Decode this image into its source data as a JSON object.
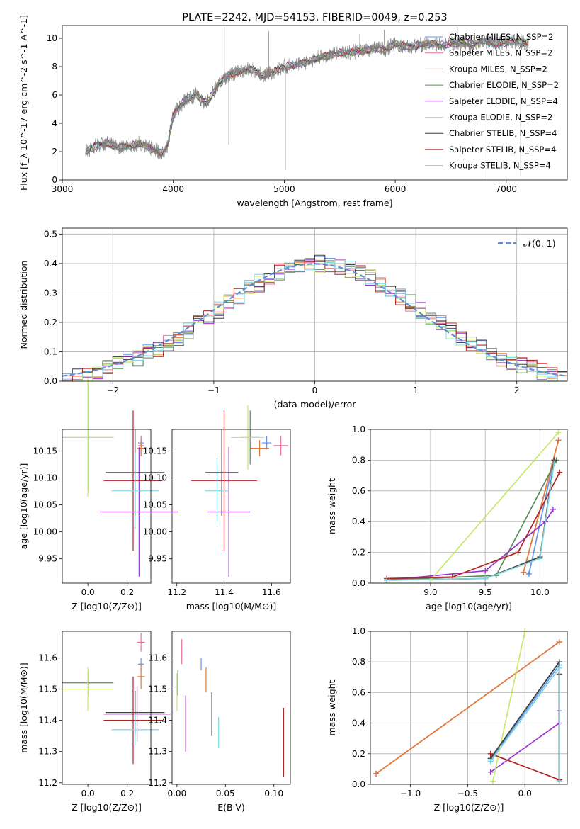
{
  "chart_data": [
    {
      "id": "spectrum",
      "type": "line",
      "title": "PLATE=2242, MJD=54153, FIBERID=0049, z=0.253",
      "xlabel": "wavelength [Angstrom, rest frame]",
      "ylabel": "Flux [f_λ 10^-17 erg cm^-2 s^-1 A^-1]",
      "xlim": [
        3000,
        7550
      ],
      "ylim": [
        0,
        10.9
      ],
      "xticks": [
        3000,
        4000,
        5000,
        6000,
        7000
      ],
      "yticks": [
        0,
        2,
        4,
        6,
        8,
        10
      ],
      "legend_position": "top-right",
      "data_line_color": "#808080",
      "series": [
        {
          "name": "Chabrier MILES, N_SSP=2",
          "color": "#6495ed"
        },
        {
          "name": "Salpeter MILES, N_SSP=2",
          "color": "#e9739b"
        },
        {
          "name": "Kroupa MILES, N_SSP=2",
          "color": "#e07b39"
        },
        {
          "name": "Chabrier ELODIE, N_SSP=2",
          "color": "#5a8a5a"
        },
        {
          "name": "Salpeter ELODIE, N_SSP=4",
          "color": "#9932cc"
        },
        {
          "name": "Kroupa ELODIE, N_SSP=2",
          "color": "#c5e86c"
        },
        {
          "name": "Chabrier STELIB, N_SSP=4",
          "color": "#404040"
        },
        {
          "name": "Salpeter STELIB, N_SSP=4",
          "color": "#b22222"
        },
        {
          "name": "Kroupa STELIB, N_SSP=4",
          "color": "#7fd6e0"
        }
      ],
      "continuum": {
        "x": [
          3210,
          3300,
          3400,
          3500,
          3600,
          3700,
          3800,
          3900,
          3950,
          4000,
          4100,
          4200,
          4300,
          4400,
          4500,
          4600,
          4700,
          4800,
          4900,
          5000,
          5100,
          5200,
          5300,
          5400,
          5500,
          5600,
          5700,
          5800,
          5900,
          6000,
          6100,
          6200,
          6300,
          6400,
          6500,
          6600,
          6700,
          6800,
          6900,
          7000,
          7100,
          7200
        ],
        "y": [
          2.0,
          2.4,
          2.6,
          2.3,
          2.4,
          2.6,
          2.2,
          1.9,
          2.5,
          4.6,
          5.6,
          6.0,
          5.4,
          6.7,
          7.4,
          7.7,
          7.8,
          7.4,
          7.6,
          8.0,
          8.1,
          8.3,
          8.6,
          8.8,
          9.0,
          9.0,
          9.1,
          9.3,
          9.2,
          9.6,
          9.4,
          9.5,
          9.6,
          9.5,
          9.6,
          9.7,
          9.6,
          9.8,
          9.6,
          9.7,
          9.8,
          9.6
        ]
      },
      "spikes": [
        {
          "x": 4460,
          "y": 10.8
        },
        {
          "x": 4500,
          "y": 2.5
        },
        {
          "x": 4860,
          "y": 10.5
        },
        {
          "x": 5010,
          "y": 0.7
        },
        {
          "x": 5680,
          "y": 10.3
        },
        {
          "x": 5900,
          "y": 10.6
        },
        {
          "x": 6560,
          "y": 10.8
        },
        {
          "x": 6800,
          "y": 0.2
        },
        {
          "x": 7130,
          "y": 0.3
        }
      ]
    },
    {
      "id": "residuals",
      "type": "area",
      "xlabel": "(data-model)/error",
      "ylabel": "Normed distribution",
      "xlim": [
        -2.5,
        2.5
      ],
      "ylim": [
        0,
        0.52
      ],
      "xticks": [
        -2,
        -1,
        0,
        1,
        2
      ],
      "yticks": [
        0.0,
        0.1,
        0.2,
        0.3,
        0.4,
        0.5
      ],
      "grid": true,
      "legend_position": "top-right",
      "gaussian_label": "𝒩(0, 1)",
      "gaussian_color": "#5b8fd8"
    },
    {
      "id": "age-vs-Z",
      "type": "scatter",
      "xlabel": "Z [log10(Z/Z⊙)]",
      "ylabel": "age  [log10(age/yr)]",
      "xlim": [
        -0.13,
        0.32
      ],
      "ylim": [
        9.905,
        10.19
      ],
      "xticks": [
        0.0,
        0.2
      ],
      "yticks": [
        9.95,
        10.0,
        10.05,
        10.1,
        10.15
      ],
      "points": [
        {
          "x": 0.27,
          "y": 10.165,
          "xerr": 0.015,
          "yerr": 0.012,
          "color": "#6495ed"
        },
        {
          "x": 0.27,
          "y": 10.16,
          "xerr": 0.015,
          "yerr": 0.018,
          "color": "#e9739b"
        },
        {
          "x": 0.27,
          "y": 10.155,
          "xerr": 0.02,
          "yerr": 0.015,
          "color": "#e07b39"
        },
        {
          "x": 0.0,
          "y": 10.175,
          "xerr": 0.13,
          "yerr": 0.1,
          "color": "#5a8a5a"
        },
        {
          "x": 0.26,
          "y": 10.037,
          "xerr": 0.2,
          "yerr": 0.12,
          "color": "#9932cc"
        },
        {
          "x": 0.0,
          "y": 10.175,
          "xerr": 0.13,
          "yerr": 0.11,
          "color": "#c5e86c"
        },
        {
          "x": 0.24,
          "y": 10.11,
          "xerr": 0.15,
          "yerr": 0.08,
          "color": "#404040"
        },
        {
          "x": 0.23,
          "y": 10.095,
          "xerr": 0.15,
          "yerr": 0.13,
          "color": "#b22222"
        },
        {
          "x": 0.24,
          "y": 10.076,
          "xerr": 0.12,
          "yerr": 0.07,
          "color": "#7fd6e0"
        }
      ]
    },
    {
      "id": "age-vs-mass",
      "type": "scatter",
      "xlabel": "mass [log10(M/M⊙)]",
      "ylabel": "",
      "xlim": [
        11.18,
        11.68
      ],
      "ylim": [
        9.905,
        10.19
      ],
      "xticks": [
        11.2,
        11.4,
        11.6
      ],
      "yticks": [
        9.95,
        10.0,
        10.05,
        10.1,
        10.15
      ],
      "points": [
        {
          "x": 11.58,
          "y": 10.165,
          "xerr": 0.02,
          "yerr": 0.012,
          "color": "#6495ed"
        },
        {
          "x": 11.64,
          "y": 10.16,
          "xerr": 0.03,
          "yerr": 0.018,
          "color": "#e9739b"
        },
        {
          "x": 11.55,
          "y": 10.155,
          "xerr": 0.04,
          "yerr": 0.015,
          "color": "#e07b39"
        },
        {
          "x": 11.51,
          "y": 10.175,
          "xerr": 0.04,
          "yerr": 0.05,
          "color": "#5a8a5a"
        },
        {
          "x": 11.42,
          "y": 10.037,
          "xerr": 0.09,
          "yerr": 0.12,
          "color": "#9932cc"
        },
        {
          "x": 11.5,
          "y": 10.175,
          "xerr": 0.07,
          "yerr": 0.06,
          "color": "#c5e86c"
        },
        {
          "x": 11.39,
          "y": 10.11,
          "xerr": 0.07,
          "yerr": 0.08,
          "color": "#404040"
        },
        {
          "x": 11.4,
          "y": 10.095,
          "xerr": 0.14,
          "yerr": 0.13,
          "color": "#b22222"
        },
        {
          "x": 11.37,
          "y": 10.076,
          "xerr": 0.05,
          "yerr": 0.06,
          "color": "#7fd6e0"
        }
      ]
    },
    {
      "id": "massweight-vs-age",
      "type": "line",
      "xlabel": "age  [log10(age/yr)]",
      "ylabel": "mass weight",
      "xlim": [
        8.45,
        10.25
      ],
      "ylim": [
        0.0,
        1.0
      ],
      "xticks": [
        9.0,
        9.5,
        10.0
      ],
      "yticks": [
        0.0,
        0.2,
        0.4,
        0.6,
        0.8,
        1.0
      ],
      "grid": true,
      "series": [
        {
          "color": "#6495ed",
          "x": [
            9.9,
            10.12
          ],
          "y": [
            0.06,
            0.78
          ]
        },
        {
          "color": "#e9739b",
          "x": [
            9.85,
            10.17
          ],
          "y": [
            0.07,
            0.93
          ]
        },
        {
          "color": "#e07b39",
          "x": [
            9.85,
            10.17
          ],
          "y": [
            0.07,
            0.93
          ]
        },
        {
          "color": "#5a8a5a",
          "x": [
            8.6,
            9.6,
            10.15
          ],
          "y": [
            0.02,
            0.05,
            0.8
          ]
        },
        {
          "color": "#9932cc",
          "x": [
            8.6,
            9.5,
            10.05,
            10.12
          ],
          "y": [
            0.02,
            0.08,
            0.4,
            0.48
          ]
        },
        {
          "color": "#c5e86c",
          "x": [
            9.0,
            10.17
          ],
          "y": [
            0.02,
            0.98
          ]
        },
        {
          "color": "#404040",
          "x": [
            8.6,
            9.5,
            10.0,
            10.13
          ],
          "y": [
            0.02,
            0.03,
            0.17,
            0.8
          ]
        },
        {
          "color": "#b22222",
          "x": [
            8.6,
            9.2,
            9.8,
            10.18
          ],
          "y": [
            0.03,
            0.04,
            0.2,
            0.72
          ]
        },
        {
          "color": "#7fd6e0",
          "x": [
            8.6,
            9.5,
            10.0,
            10.13
          ],
          "y": [
            0.02,
            0.03,
            0.16,
            0.78
          ]
        }
      ]
    },
    {
      "id": "mass-vs-Z",
      "type": "scatter",
      "xlabel": "Z [log10(Z/Z⊙)]",
      "ylabel": "mass [log10(M/M⊙)]",
      "xlim": [
        -0.13,
        0.32
      ],
      "ylim": [
        11.195,
        11.685
      ],
      "xticks": [
        0.0,
        0.2
      ],
      "yticks": [
        11.2,
        11.3,
        11.4,
        11.5,
        11.6
      ],
      "points": [
        {
          "x": 0.27,
          "y": 11.58,
          "xerr": 0.015,
          "yerr": 0.02,
          "color": "#6495ed"
        },
        {
          "x": 0.27,
          "y": 11.65,
          "xerr": 0.02,
          "yerr": 0.03,
          "color": "#e9739b"
        },
        {
          "x": 0.27,
          "y": 11.54,
          "xerr": 0.02,
          "yerr": 0.04,
          "color": "#e07b39"
        },
        {
          "x": 0.0,
          "y": 11.52,
          "xerr": 0.13,
          "yerr": 0.04,
          "color": "#5a8a5a"
        },
        {
          "x": 0.25,
          "y": 11.42,
          "xerr": 0.17,
          "yerr": 0.09,
          "color": "#9932cc"
        },
        {
          "x": 0.0,
          "y": 11.5,
          "xerr": 0.13,
          "yerr": 0.07,
          "color": "#c5e86c"
        },
        {
          "x": 0.24,
          "y": 11.425,
          "xerr": 0.15,
          "yerr": 0.07,
          "color": "#404040"
        },
        {
          "x": 0.23,
          "y": 11.4,
          "xerr": 0.15,
          "yerr": 0.14,
          "color": "#b22222"
        },
        {
          "x": 0.24,
          "y": 11.37,
          "xerr": 0.12,
          "yerr": 0.05,
          "color": "#7fd6e0"
        }
      ]
    },
    {
      "id": "mass-vs-ebv",
      "type": "scatter",
      "xlabel": "E(B-V)",
      "ylabel": "",
      "xlim": [
        -0.005,
        0.117
      ],
      "ylim": [
        11.195,
        11.685
      ],
      "xticks": [
        0.0,
        0.05,
        0.1
      ],
      "yticks": [
        11.2,
        11.3,
        11.4,
        11.5,
        11.6
      ],
      "points": [
        {
          "x": 0.025,
          "y": 11.58,
          "yerr": 0.02,
          "color": "#6495ed"
        },
        {
          "x": 0.005,
          "y": 11.62,
          "yerr": 0.04,
          "color": "#e9739b"
        },
        {
          "x": 0.03,
          "y": 11.53,
          "yerr": 0.04,
          "color": "#e07b39"
        },
        {
          "x": 0.001,
          "y": 11.52,
          "yerr": 0.04,
          "color": "#5a8a5a"
        },
        {
          "x": 0.009,
          "y": 11.39,
          "yerr": 0.09,
          "color": "#9932cc"
        },
        {
          "x": 0.0,
          "y": 11.49,
          "yerr": 0.06,
          "color": "#c5e86c"
        },
        {
          "x": 0.036,
          "y": 11.42,
          "yerr": 0.07,
          "color": "#404040"
        },
        {
          "x": 0.11,
          "y": 11.33,
          "yerr": 0.11,
          "color": "#b22222"
        },
        {
          "x": 0.043,
          "y": 11.36,
          "yerr": 0.05,
          "color": "#7fd6e0"
        }
      ]
    },
    {
      "id": "massweight-vs-Z",
      "type": "line",
      "xlabel": "Z [log10(Z/Z⊙)]",
      "ylabel": "mass weight",
      "xlim": [
        -1.35,
        0.37
      ],
      "ylim": [
        0.0,
        1.0
      ],
      "xticks": [
        -1.0,
        -0.5,
        0.0
      ],
      "yticks": [
        0.0,
        0.2,
        0.4,
        0.6,
        0.8,
        1.0
      ],
      "grid": true,
      "series": [
        {
          "color": "#6495ed",
          "x": [
            -0.3,
            0.3,
            0.3
          ],
          "y": [
            0.16,
            0.78,
            0.03
          ]
        },
        {
          "color": "#e9739b",
          "x": [
            -1.3,
            0.3
          ],
          "y": [
            0.07,
            0.93
          ]
        },
        {
          "color": "#e07b39",
          "x": [
            -1.3,
            0.3
          ],
          "y": [
            0.07,
            0.93
          ]
        },
        {
          "color": "#5a8a5a",
          "x": [
            -0.3,
            0.3,
            0.3
          ],
          "y": [
            0.17,
            0.8,
            0.03
          ]
        },
        {
          "color": "#9932cc",
          "x": [
            -0.3,
            0.3,
            0.3
          ],
          "y": [
            0.08,
            0.4,
            0.48
          ]
        },
        {
          "color": "#c5e86c",
          "x": [
            -0.28,
            0.0
          ],
          "y": [
            0.02,
            1.0
          ]
        },
        {
          "color": "#404040",
          "x": [
            -0.3,
            0.3,
            0.3
          ],
          "y": [
            0.17,
            0.8,
            0.03
          ]
        },
        {
          "color": "#b22222",
          "x": [
            -0.3,
            0.3,
            0.3
          ],
          "y": [
            0.2,
            0.03,
            0.72
          ]
        },
        {
          "color": "#7fd6e0",
          "x": [
            -0.3,
            0.3,
            0.3
          ],
          "y": [
            0.15,
            0.76,
            0.02
          ]
        }
      ]
    }
  ]
}
